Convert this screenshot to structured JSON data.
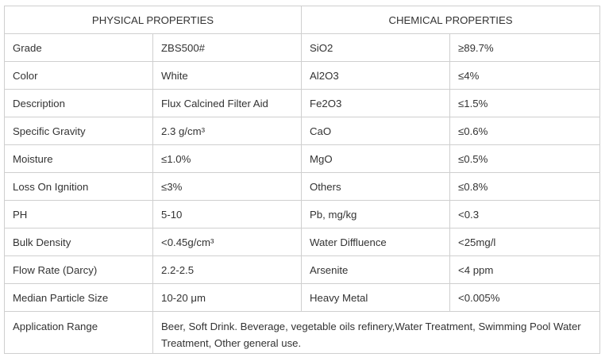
{
  "header": {
    "physical": "PHYSICAL PROPERTIES",
    "chemical": "CHEMICAL PROPERTIES"
  },
  "rows": [
    {
      "phys_label": "Grade",
      "phys_value": "ZBS500#",
      "chem_label": "SiO2",
      "chem_value": "≥89.7%"
    },
    {
      "phys_label": "Color",
      "phys_value": "White",
      "chem_label": "Al2O3",
      "chem_value": "≤4%"
    },
    {
      "phys_label": "Description",
      "phys_value": "Flux Calcined Filter Aid",
      "chem_label": "Fe2O3",
      "chem_value": "≤1.5%"
    },
    {
      "phys_label": "Specific Gravity",
      "phys_value": "2.3 g/cm³",
      "chem_label": "CaO",
      "chem_value": "≤0.6%"
    },
    {
      "phys_label": "Moisture",
      "phys_value": "≤1.0%",
      "chem_label": "MgO",
      "chem_value": "≤0.5%"
    },
    {
      "phys_label": "Loss On Ignition",
      "phys_value": "≤3%",
      "chem_label": "Others",
      "chem_value": "≤0.8%"
    },
    {
      "phys_label": "PH",
      "phys_value": "5-10",
      "chem_label": "Pb, mg/kg",
      "chem_value": "<0.3"
    },
    {
      "phys_label": "Bulk Density",
      "phys_value": "<0.45g/cm³",
      "chem_label": "Water Diffluence",
      "chem_value": "<25mg/l"
    },
    {
      "phys_label": "Flow Rate (Darcy)",
      "phys_value": "2.2-2.5",
      "chem_label": "Arsenite",
      "chem_value": "<4 ppm"
    },
    {
      "phys_label": "Median Particle Size",
      "phys_value": "10-20 μm",
      "chem_label": "Heavy Metal",
      "chem_value": "<0.005%"
    }
  ],
  "application": {
    "label": "Application Range",
    "value": "Beer, Soft Drink. Beverage, vegetable oils refinery,Water Treatment, Swimming Pool Water Treatment, Other general use."
  }
}
